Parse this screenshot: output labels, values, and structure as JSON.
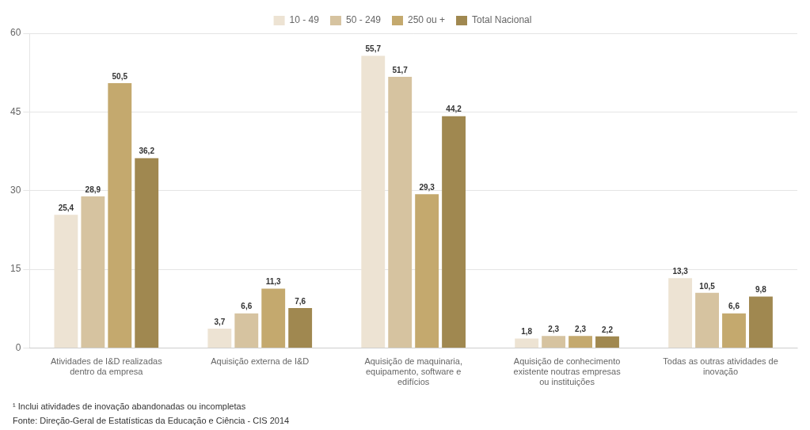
{
  "chart_data": {
    "type": "bar",
    "categories": [
      "Atividades de I&D realizadas\ndentro da empresa",
      "Aquisição externa de I&D",
      "Aquisição de maquinaria,\nequipamento, software e\nedifícios",
      "Aquisição de conhecimento\nexistente noutras empresas\nou instituições",
      "Todas as outras atividades de\ninovação"
    ],
    "series": [
      {
        "name": "10 - 49",
        "color": "#ede3d3",
        "values": [
          25.4,
          3.7,
          55.7,
          1.8,
          13.3
        ],
        "value_labels": [
          "25,4",
          "3,7",
          "55,7",
          "1,8",
          "13,3"
        ]
      },
      {
        "name": "50 - 249",
        "color": "#d6c3a0",
        "values": [
          28.9,
          6.6,
          51.7,
          2.3,
          10.5
        ],
        "value_labels": [
          "28,9",
          "6,6",
          "51,7",
          "2,3",
          "10,5"
        ]
      },
      {
        "name": "250 ou +",
        "color": "#c4a96e",
        "values": [
          50.5,
          11.3,
          29.3,
          2.3,
          6.6
        ],
        "value_labels": [
          "50,5",
          "11,3",
          "29,3",
          "2,3",
          "6,6"
        ]
      },
      {
        "name": "Total Nacional",
        "color": "#a08850",
        "values": [
          36.2,
          7.6,
          44.2,
          2.2,
          9.8
        ],
        "value_labels": [
          "36,2",
          "7,6",
          "44,2",
          "2,2",
          "9,8"
        ]
      }
    ],
    "ylim": [
      0,
      60
    ],
    "yticks": [
      0,
      15,
      30,
      45,
      60
    ],
    "grid": true,
    "legend": "top",
    "data_labels": true,
    "annotations": [
      "¹ Inclui atividades de inovação abandonadas ou incompletas",
      "Fonte: Direção-Geral de Estatísticas da Educação e Ciência - CIS 2014"
    ]
  }
}
